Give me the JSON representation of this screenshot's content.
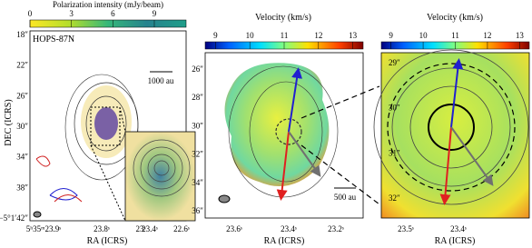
{
  "panels": [
    {
      "colorbar": {
        "label": "Polarization intensity (mJy/beam)",
        "range": [
          0,
          11.3
        ],
        "ticks": [
          0,
          3,
          6,
          9
        ]
      },
      "source": "HOPS-87N",
      "scalebar": "1000 au",
      "y_axis": {
        "label": "DEC (ICRS)",
        "ticks": [
          "18″",
          "22″",
          "26″",
          "30″",
          "34″",
          "38″",
          "−5°1′42″"
        ]
      },
      "x_axis": {
        "label": "RA (ICRS)",
        "ticks": [
          "5ʰ35ᵐ23.9ˢ",
          "23.8ˢ",
          "23.4ˢ"
        ]
      },
      "inset_x_ticks": [
        "23ˢ",
        "22.6ˢ"
      ]
    },
    {
      "colorbar": {
        "label": "Velocity (km/s)",
        "range": [
          8.7,
          13.3
        ],
        "ticks": [
          9,
          10,
          11,
          12,
          13
        ]
      },
      "scalebar": "500 au",
      "y_axis": {
        "ticks": [
          "26″",
          "28″",
          "30″",
          "32″",
          "34″",
          "36″"
        ]
      },
      "x_axis": {
        "label": "RA (ICRS)",
        "ticks": [
          "23.6ˢ",
          "23.4ˢ",
          "23.2ˢ"
        ]
      }
    },
    {
      "colorbar": {
        "label": "Velocity (km/s)",
        "range": [
          8.7,
          13.3
        ],
        "ticks": [
          9,
          10,
          11,
          12,
          13
        ]
      },
      "y_axis": {
        "ticks": [
          "29″",
          "30″",
          "31″",
          "32″"
        ]
      },
      "x_axis": {
        "label": "RA (ICRS)",
        "ticks": [
          "23.5ˢ",
          "23.4ˢ"
        ]
      }
    }
  ]
}
